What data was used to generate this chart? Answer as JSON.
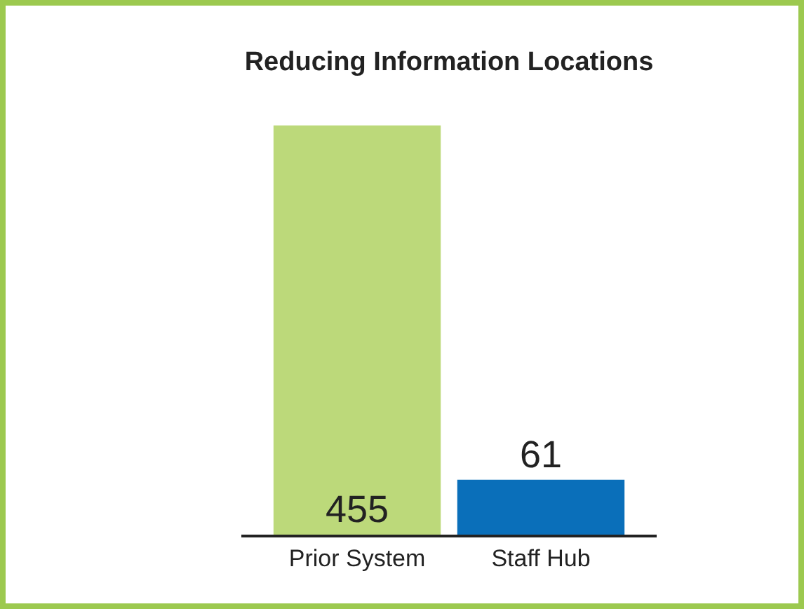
{
  "chart_data": {
    "type": "bar",
    "title": "Reducing Information Locations",
    "categories": [
      "Prior System",
      "Staff Hub"
    ],
    "values": [
      455,
      61
    ],
    "colors": [
      "#bcd97a",
      "#0a6fba"
    ],
    "data_labels": true
  }
}
